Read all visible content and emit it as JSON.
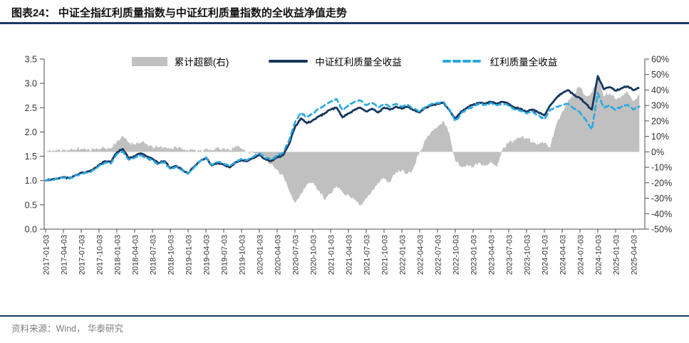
{
  "figure": {
    "title": "图表24：  中证全指红利质量指数与中证红利质量指数的全收益净值走势",
    "source": "资料来源：Wind， 华泰研究"
  },
  "colors": {
    "rule_navy": "#1F3864",
    "axis_line": "#4d4d4d",
    "axis_text": "#333333",
    "source_text": "#7f7f7f"
  },
  "chart_data": {
    "type": "line",
    "title": "中证全指红利质量指数与中证红利质量指数的全收益净值走势",
    "x_start": "2017-01",
    "x_end": "2025-05",
    "x_freq": "monthly",
    "x_tick_labels": [
      "2017-01-03",
      "2017-04-03",
      "2017-07-03",
      "2017-10-03",
      "2018-01-03",
      "2018-04-03",
      "2018-07-03",
      "2018-10-03",
      "2019-01-03",
      "2019-04-03",
      "2019-07-03",
      "2019-10-03",
      "2020-01-03",
      "2020-04-03",
      "2020-07-03",
      "2020-10-03",
      "2021-01-03",
      "2021-04-03",
      "2021-07-03",
      "2021-10-03",
      "2022-01-03",
      "2022-04-03",
      "2022-07-03",
      "2022-10-03",
      "2023-01-03",
      "2023-04-03",
      "2023-07-03",
      "2023-10-03",
      "2024-01-03",
      "2024-04-03",
      "2024-07-03",
      "2024-10-03",
      "2025-01-03",
      "2025-04-03"
    ],
    "left_axis": {
      "min": 0.0,
      "max": 3.5,
      "step": 0.5
    },
    "right_axis": {
      "min": -50,
      "max": 60,
      "step": 10,
      "unit": "%"
    },
    "grid": false,
    "legend_position": "top-center",
    "legend": [
      {
        "label": "累计超额(右)",
        "type": "area",
        "color": "#C0C0C0"
      },
      {
        "label": "中证红利质量全收益",
        "type": "solid-line",
        "color": "#17365D"
      },
      {
        "label": "红利质量全收益",
        "type": "dashed-line",
        "color": "#29A8E0"
      }
    ],
    "series": [
      {
        "name": "累计超额(右)",
        "axis": "right",
        "type": "area",
        "color": "#C0C0C0",
        "values": [
          0,
          0.5,
          1,
          1.5,
          1,
          1.5,
          2,
          1.5,
          2,
          2,
          2.5,
          2,
          7,
          10,
          6,
          5,
          6,
          5,
          3,
          3,
          3,
          2,
          3,
          2,
          1,
          1,
          1,
          2,
          1,
          3,
          2,
          1,
          4,
          2,
          0,
          -1,
          -2,
          -4,
          -8,
          -12,
          -15,
          -25,
          -33,
          -27,
          -21,
          -20,
          -25,
          -31,
          -27,
          -22,
          -26,
          -28,
          -31,
          -35,
          -30,
          -25,
          -20,
          -17,
          -20,
          -13,
          -12,
          -14,
          -10,
          0,
          8,
          13,
          16,
          20,
          12,
          -6,
          -10,
          -8,
          -10,
          -7,
          -9,
          -6,
          -10,
          2,
          6,
          8,
          9,
          9,
          6,
          5,
          6,
          3,
          18,
          26,
          33,
          38,
          42,
          36,
          38,
          48,
          36,
          38,
          34,
          36,
          39,
          33,
          37
        ]
      },
      {
        "name": "中证红利质量全收益",
        "axis": "left",
        "type": "solid-line",
        "color": "#17365D",
        "values": [
          1.0,
          1.02,
          1.04,
          1.07,
          1.05,
          1.11,
          1.16,
          1.18,
          1.23,
          1.32,
          1.4,
          1.38,
          1.58,
          1.65,
          1.46,
          1.5,
          1.56,
          1.5,
          1.45,
          1.36,
          1.4,
          1.26,
          1.3,
          1.22,
          1.15,
          1.28,
          1.4,
          1.47,
          1.31,
          1.36,
          1.33,
          1.27,
          1.38,
          1.42,
          1.4,
          1.46,
          1.53,
          1.44,
          1.4,
          1.48,
          1.52,
          1.75,
          2.1,
          2.28,
          2.18,
          2.24,
          2.32,
          2.38,
          2.46,
          2.5,
          2.3,
          2.38,
          2.45,
          2.5,
          2.42,
          2.48,
          2.4,
          2.5,
          2.46,
          2.52,
          2.48,
          2.52,
          2.45,
          2.4,
          2.5,
          2.55,
          2.58,
          2.6,
          2.45,
          2.28,
          2.42,
          2.5,
          2.56,
          2.6,
          2.58,
          2.62,
          2.58,
          2.62,
          2.58,
          2.5,
          2.48,
          2.42,
          2.46,
          2.4,
          2.34,
          2.55,
          2.7,
          2.8,
          2.86,
          2.76,
          2.7,
          2.58,
          2.46,
          3.15,
          2.88,
          2.92,
          2.85,
          2.9,
          2.94,
          2.86,
          2.91
        ]
      },
      {
        "name": "红利质量全收益",
        "axis": "left",
        "type": "dashed-line",
        "color": "#29A8E0",
        "values": [
          1.0,
          1.02,
          1.03,
          1.06,
          1.04,
          1.1,
          1.14,
          1.16,
          1.21,
          1.3,
          1.37,
          1.35,
          1.54,
          1.6,
          1.43,
          1.47,
          1.52,
          1.46,
          1.42,
          1.33,
          1.38,
          1.24,
          1.28,
          1.21,
          1.14,
          1.27,
          1.4,
          1.48,
          1.32,
          1.38,
          1.35,
          1.29,
          1.4,
          1.44,
          1.42,
          1.49,
          1.56,
          1.47,
          1.43,
          1.52,
          1.57,
          1.82,
          2.2,
          2.4,
          2.3,
          2.38,
          2.48,
          2.55,
          2.62,
          2.68,
          2.45,
          2.55,
          2.62,
          2.65,
          2.55,
          2.6,
          2.5,
          2.58,
          2.52,
          2.58,
          2.52,
          2.56,
          2.48,
          2.42,
          2.52,
          2.58,
          2.6,
          2.62,
          2.46,
          2.22,
          2.38,
          2.46,
          2.52,
          2.58,
          2.56,
          2.6,
          2.55,
          2.58,
          2.54,
          2.46,
          2.44,
          2.38,
          2.42,
          2.34,
          2.26,
          2.45,
          2.52,
          2.55,
          2.58,
          2.48,
          2.4,
          2.25,
          2.05,
          2.8,
          2.5,
          2.55,
          2.45,
          2.52,
          2.56,
          2.46,
          2.52
        ]
      }
    ]
  }
}
